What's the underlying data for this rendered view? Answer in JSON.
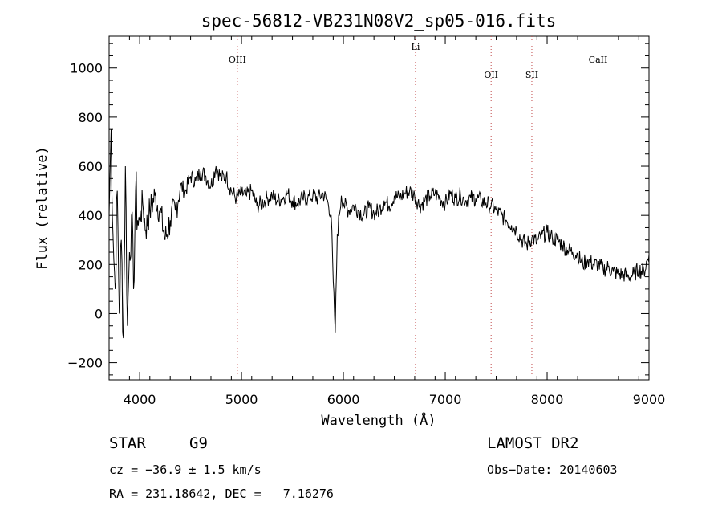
{
  "chart_data": {
    "type": "line",
    "title": "spec-56812-VB231N08V2_sp05-016.fits",
    "xlabel": "Wavelength (Å)",
    "ylabel": "Flux (relative)",
    "xlim": [
      3700,
      9000
    ],
    "ylim": [
      -270,
      1130
    ],
    "xticks": [
      4000,
      5000,
      6000,
      7000,
      8000,
      9000
    ],
    "yticks": [
      -200,
      0,
      200,
      400,
      600,
      800,
      1000
    ],
    "series": [
      {
        "x": [
          3700,
          3720,
          3740,
          3760,
          3780,
          3800,
          3820,
          3840,
          3860,
          3880,
          3900,
          3920,
          3940,
          3960,
          3980,
          4000,
          4030,
          4060,
          4100,
          4150,
          4200,
          4250,
          4300,
          4350,
          4400,
          4450,
          4500,
          4550,
          4600,
          4650,
          4700,
          4750,
          4800,
          4850,
          4900,
          4950,
          5000,
          5050,
          5100,
          5150,
          5200,
          5250,
          5300,
          5350,
          5400,
          5450,
          5500,
          5550,
          5600,
          5650,
          5700,
          5750,
          5800,
          5850,
          5880,
          5900,
          5920,
          5940,
          5960,
          5980,
          6000,
          6050,
          6100,
          6150,
          6200,
          6250,
          6300,
          6350,
          6400,
          6450,
          6500,
          6550,
          6600,
          6650,
          6700,
          6750,
          6800,
          6850,
          6900,
          6950,
          7000,
          7050,
          7100,
          7150,
          7200,
          7250,
          7300,
          7350,
          7400,
          7450,
          7500,
          7550,
          7600,
          7650,
          7700,
          7750,
          7800,
          7850,
          7900,
          7950,
          8000,
          8050,
          8100,
          8150,
          8200,
          8250,
          8300,
          8350,
          8400,
          8450,
          8500,
          8550,
          8600,
          8650,
          8700,
          8750,
          8800,
          8850,
          8900,
          8950,
          9000
        ],
        "values": [
          400,
          750,
          300,
          100,
          500,
          0,
          300,
          -100,
          600,
          -50,
          250,
          400,
          100,
          500,
          380,
          380,
          450,
          340,
          420,
          480,
          420,
          300,
          380,
          420,
          520,
          500,
          560,
          540,
          580,
          560,
          520,
          600,
          550,
          560,
          500,
          470,
          490,
          480,
          500,
          440,
          450,
          470,
          480,
          460,
          470,
          490,
          460,
          450,
          470,
          470,
          480,
          470,
          490,
          450,
          400,
          130,
          -80,
          320,
          400,
          480,
          450,
          420,
          440,
          420,
          400,
          430,
          410,
          420,
          460,
          440,
          480,
          470,
          490,
          500,
          480,
          440,
          460,
          480,
          490,
          470,
          450,
          490,
          470,
          480,
          460,
          470,
          470,
          460,
          450,
          440,
          420,
          400,
          380,
          360,
          340,
          300,
          280,
          310,
          290,
          320,
          330,
          310,
          300,
          280,
          260,
          250,
          240,
          200,
          220,
          200,
          200,
          180,
          190,
          170,
          160,
          160,
          150,
          160,
          180,
          170,
          240
        ]
      }
    ],
    "lines": [
      {
        "label": "OIII",
        "x": 4959
      },
      {
        "label": "Li",
        "x": 6708
      },
      {
        "label": "OII",
        "x": 7450
      },
      {
        "label": "SII",
        "x": 7850
      },
      {
        "label": "CaII",
        "x": 8500
      }
    ],
    "grid": false
  },
  "info": {
    "class_label": "STAR",
    "subclass": "G9",
    "survey": "LAMOST DR2",
    "cz": "cz = −36.9 ± 1.5 km/s",
    "obs_date": "Obs−Date: 20140603",
    "radec": "RA = 231.18642, DEC =   7.16276"
  }
}
